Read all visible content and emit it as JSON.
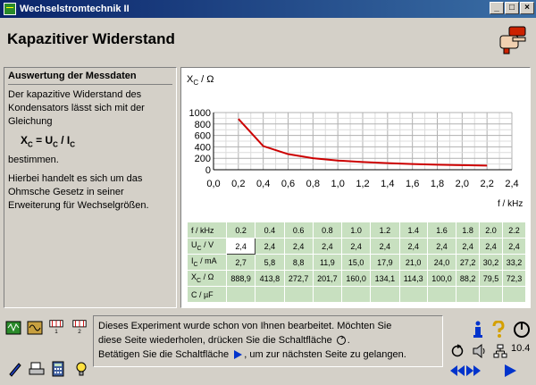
{
  "window": {
    "title": "Wechselstromtechnik II",
    "buttons": [
      "_",
      "□",
      "×"
    ]
  },
  "page": {
    "title": "Kapazitiver Widerstand",
    "number": "10.4"
  },
  "left_panel": {
    "heading": "Auswertung der Messdaten",
    "para1": "Der kapazitive Widerstand des Kondensators lässt sich mit der Gleichung",
    "formula_x": "X",
    "formula_xs": "C",
    "formula_eq": " = U",
    "formula_us": "C",
    "formula_sl": " / I",
    "formula_is": "C",
    "para2": "bestimmen.",
    "para3": "Hierbei handelt es sich um das Ohmsche Gesetz in seiner Erweiterung für Wechselgrößen."
  },
  "chart_data": {
    "type": "line",
    "ylabel": "X",
    "ylabel_sub": "C",
    "ylabel_unit": " / Ω",
    "xlabel": "f / kHz",
    "xlim": [
      0,
      2.4
    ],
    "ylim": [
      0,
      1000
    ],
    "xticks": [
      "0,0",
      "0,2",
      "0,4",
      "0,6",
      "0,8",
      "1,0",
      "1,2",
      "1,4",
      "1,6",
      "1,8",
      "2,0",
      "2,2",
      "2,4"
    ],
    "yticks": [
      "0",
      "200",
      "400",
      "600",
      "800",
      "1000"
    ],
    "grid": true,
    "line_color": "#cc0000",
    "x": [
      0.2,
      0.4,
      0.6,
      0.8,
      1.0,
      1.2,
      1.4,
      1.6,
      1.8,
      2.0,
      2.2
    ],
    "y": [
      888.9,
      413.8,
      272.7,
      201.7,
      160.0,
      134.1,
      114.3,
      100.0,
      88.2,
      79.5,
      72.3
    ]
  },
  "table": {
    "rows": [
      {
        "label": "f / kHz",
        "label_sub": "",
        "label_unit": "",
        "values": [
          "0.2",
          "0.4",
          "0.6",
          "0.8",
          "1.0",
          "1.2",
          "1.4",
          "1.6",
          "1.8",
          "2.0",
          "2.2"
        ]
      },
      {
        "label": "U",
        "label_sub": "C",
        "label_unit": " / V",
        "values": [
          "2,4",
          "2,4",
          "2,4",
          "2,4",
          "2,4",
          "2,4",
          "2,4",
          "2,4",
          "2,4",
          "2,4",
          "2,4"
        ]
      },
      {
        "label": "I",
        "label_sub": "C",
        "label_unit": " / mA",
        "values": [
          "2,7",
          "5,8",
          "8,8",
          "11,9",
          "15,0",
          "17,9",
          "21,0",
          "24,0",
          "27,2",
          "30,2",
          "33,2"
        ]
      },
      {
        "label": "X",
        "label_sub": "C",
        "label_unit": " / Ω",
        "values": [
          "888,9",
          "413,8",
          "272,7",
          "201,7",
          "160,0",
          "134,1",
          "114,3",
          "100,0",
          "88,2",
          "79,5",
          "72,3"
        ]
      },
      {
        "label": "C / µF",
        "label_sub": "",
        "label_unit": "",
        "values": [
          "",
          "",
          "",
          "",
          "",
          "",
          "",
          "",
          "",
          "",
          ""
        ]
      }
    ]
  },
  "message": {
    "line1": "Dieses Experiment wurde schon von Ihnen bearbeitet. Möchten Sie",
    "line2a": "diese Seite wiederholen, drücken Sie die Schaltfläche",
    "line2b": ".",
    "line3a": "Betätigen Sie die Schaltfläche",
    "line3b": ", um zur nächsten Seite zu gelangen."
  },
  "icons": {
    "accent_blue": "#0033cc",
    "accent_green": "#2a8a2a"
  }
}
